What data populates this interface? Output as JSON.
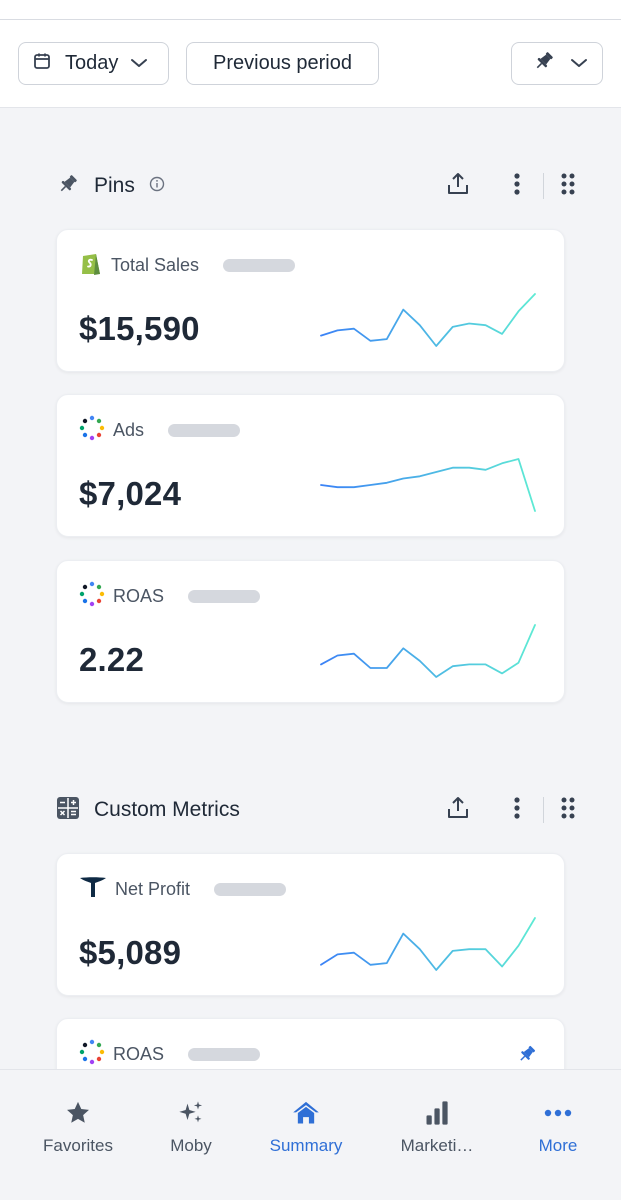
{
  "toolbar": {
    "date_label": "Today",
    "compare_label": "Previous period"
  },
  "pins_section": {
    "title": "Pins",
    "cards": [
      {
        "name": "Total Sales",
        "value": "$15,590",
        "icon": "shopify-icon",
        "sparkline": [
          6,
          9,
          10,
          3,
          4,
          21,
          12,
          0,
          11,
          13,
          12,
          7,
          20,
          30
        ]
      },
      {
        "name": "Ads",
        "value": "$7,024",
        "icon": "ads-dots-icon",
        "sparkline": [
          15,
          14,
          14,
          15,
          16,
          18,
          19,
          21,
          23,
          23,
          22,
          25,
          27,
          3
        ]
      },
      {
        "name": "ROAS",
        "value": "2.22",
        "icon": "ads-dots-icon",
        "sparkline": [
          7,
          12,
          13,
          5,
          5,
          16,
          9,
          0,
          6,
          7,
          7,
          2,
          8,
          29
        ]
      }
    ]
  },
  "custom_section": {
    "title": "Custom Metrics",
    "cards": [
      {
        "name": "Net Profit",
        "value": "$5,089",
        "icon": "triple-whale-icon",
        "sparkline": [
          3,
          9,
          10,
          3,
          4,
          21,
          12,
          0,
          11,
          12,
          12,
          2,
          14,
          30
        ]
      },
      {
        "name": "ROAS",
        "icon": "ads-dots-icon"
      }
    ]
  },
  "tabbar": {
    "items": [
      {
        "label": "Favorites",
        "icon": "star-icon"
      },
      {
        "label": "Moby",
        "icon": "sparkles-icon"
      },
      {
        "label": "Summary",
        "icon": "home-icon"
      },
      {
        "label": "Marketi…",
        "icon": "bar-chart-icon"
      },
      {
        "label": "More",
        "icon": "ellipsis-icon"
      }
    ],
    "active": "Summary"
  },
  "colors": {
    "accent": "#2f6fd6",
    "spark_start": "#3b82f6",
    "spark_end": "#5eead4",
    "shopify_green": "#95bf47"
  }
}
